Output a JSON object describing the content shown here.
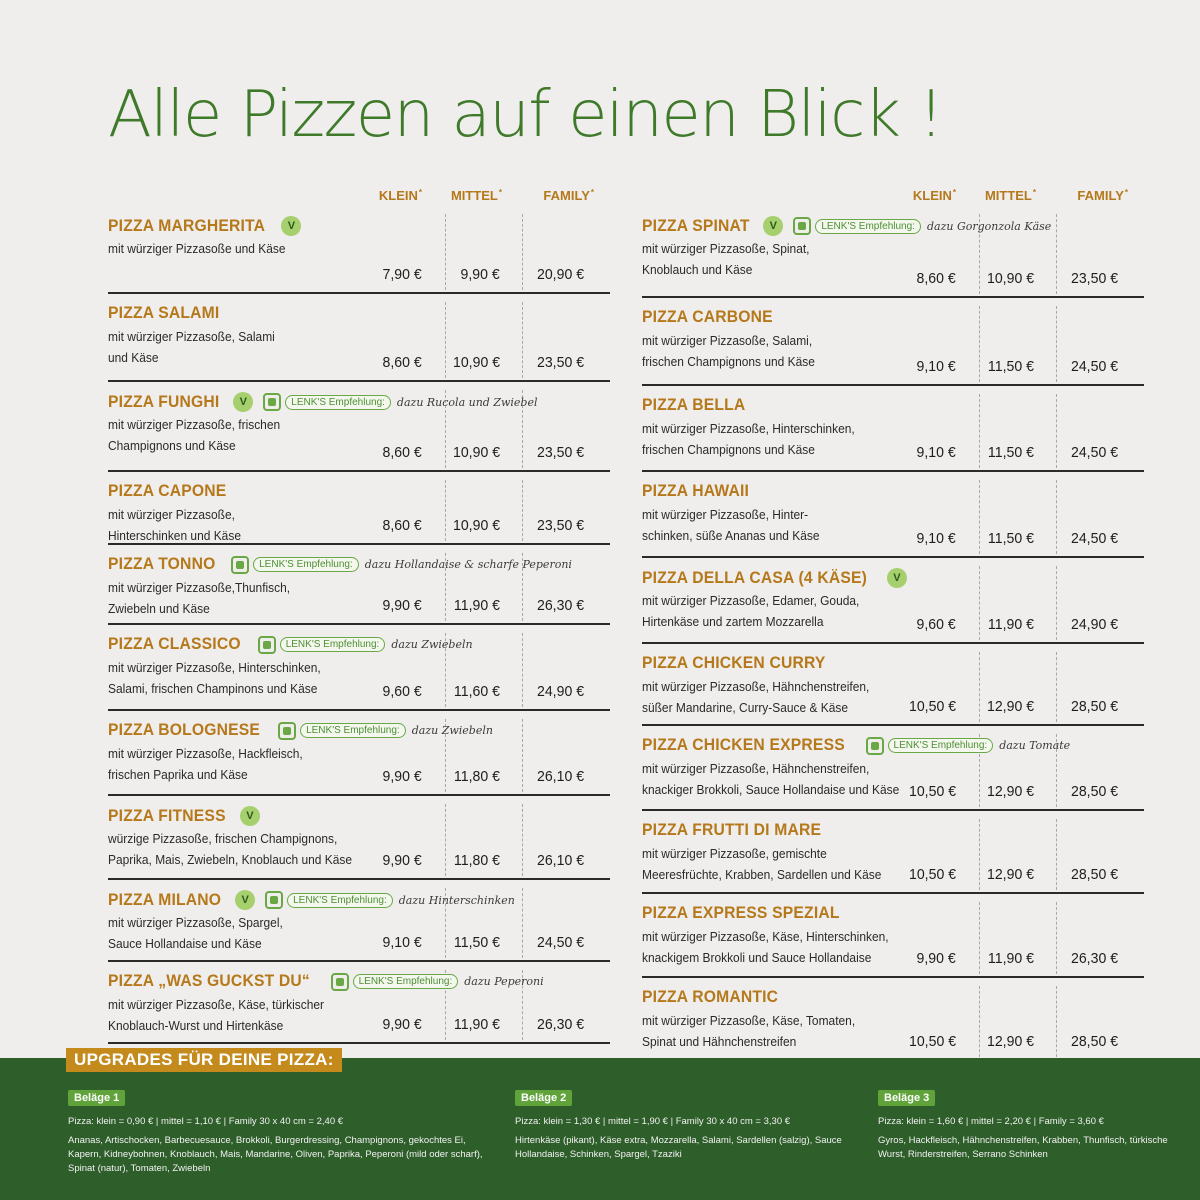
{
  "title": "Alle Pizzen auf einen Blick !",
  "header": {
    "klein": "KLEIN",
    "mittel": "MITTEL",
    "family": "FAMILY"
  },
  "left": [
    {
      "name": "PIZZA MARGHERITA",
      "veg": "V",
      "rec": "",
      "desc": [
        "mit würziger Pizzasoße und Käse"
      ],
      "klein": "7,90 €",
      "mittel": "9,90 €",
      "family": "20,90 €"
    },
    {
      "name": "PIZZA SALAMI",
      "veg": "",
      "rec": "",
      "desc": [
        "mit würziger Pizzasoße, Salami",
        "und Käse"
      ],
      "klein": "8,60 €",
      "mittel": "10,90 €",
      "family": "23,50 €"
    },
    {
      "name": "PIZZA FUNGHI",
      "veg": "V",
      "rec": "dazu Rucola und Zwiebel",
      "desc": [
        "mit würziger Pizzasoße, frischen",
        "Champignons und Käse"
      ],
      "klein": "8,60 €",
      "mittel": "10,90 €",
      "family": "23,50 €"
    },
    {
      "name": "PIZZA CAPONE",
      "veg": "",
      "rec": "",
      "desc": [
        "mit würziger Pizzasoße,",
        "Hinterschinken und Käse"
      ],
      "klein": "8,60 €",
      "mittel": "10,90 €",
      "family": "23,50 €"
    },
    {
      "name": "PIZZA TONNO",
      "veg": "",
      "rec": "dazu Hollandaise & scharfe Peperoni",
      "desc": [
        "mit würziger Pizzasoße,Thunfisch,",
        "Zwiebeln und Käse"
      ],
      "klein": "9,90 €",
      "mittel": "11,90 €",
      "family": "26,30 €"
    },
    {
      "name": "PIZZA CLASSICO",
      "veg": "",
      "rec": "dazu Zwiebeln",
      "desc": [
        "mit würziger Pizzasoße, Hinterschinken,",
        "Salami, frischen Champinons und Käse"
      ],
      "klein": "9,60 €",
      "mittel": "11,60 €",
      "family": "24,90 €"
    },
    {
      "name": "PIZZA BOLOGNESE",
      "veg": "",
      "rec": "dazu Zwiebeln",
      "desc": [
        "mit würziger Pizzasoße, Hackfleisch,",
        "frischen Paprika und Käse"
      ],
      "klein": "9,90 €",
      "mittel": "11,80 €",
      "family": "26,10 €"
    },
    {
      "name": "PIZZA FITNESS",
      "veg": "V",
      "rec": "",
      "desc": [
        "würzige Pizzasoße, frischen Champignons,",
        "Paprika, Mais, Zwiebeln, Knoblauch und Käse"
      ],
      "klein": "9,90 €",
      "mittel": "11,80 €",
      "family": "26,10 €"
    },
    {
      "name": "PIZZA MILANO",
      "veg": "V",
      "rec": "dazu Hinterschinken",
      "desc": [
        "mit würziger Pizzasoße, Spargel,",
        "Sauce Hollandaise und Käse"
      ],
      "klein": "9,10 €",
      "mittel": "11,50 €",
      "family": "24,50 €"
    },
    {
      "name": "PIZZA „WAS GUCKST DU“",
      "veg": "",
      "rec": "dazu Peperoni",
      "desc": [
        "mit würziger Pizzasoße, Käse, türkischer",
        "Knoblauch-Wurst und Hirtenkäse"
      ],
      "klein": "9,90 €",
      "mittel": "11,90 €",
      "family": "26,30 €"
    }
  ],
  "right": [
    {
      "name": "PIZZA SPINAT",
      "veg": "V",
      "rec": "dazu Gorgonzola Käse",
      "desc": [
        "mit würziger Pizzasoße, Spinat,",
        "Knoblauch und Käse"
      ],
      "klein": "8,60 €",
      "mittel": "10,90 €",
      "family": "23,50 €"
    },
    {
      "name": "PIZZA CARBONE",
      "veg": "",
      "rec": "",
      "desc": [
        "mit würziger Pizzasoße, Salami,",
        "frischen Champignons und Käse"
      ],
      "klein": "9,10 €",
      "mittel": "11,50 €",
      "family": "24,50 €"
    },
    {
      "name": "PIZZA BELLA",
      "veg": "",
      "rec": "",
      "desc": [
        "mit würziger Pizzasoße, Hinterschinken,",
        "frischen Champignons und Käse"
      ],
      "klein": "9,10 €",
      "mittel": "11,50 €",
      "family": "24,50 €"
    },
    {
      "name": "PIZZA HAWAII",
      "veg": "",
      "rec": "",
      "desc": [
        "mit würziger Pizzasoße, Hinter-",
        "schinken, süße Ananas und Käse"
      ],
      "klein": "9,10 €",
      "mittel": "11,50 €",
      "family": "24,50 €"
    },
    {
      "name": "PIZZA DELLA CASA (4 KÄSE)",
      "veg": "V",
      "rec": "",
      "desc": [
        "mit würziger Pizzasoße, Edamer, Gouda,",
        "Hirtenkäse und zartem Mozzarella"
      ],
      "klein": "9,60 €",
      "mittel": "11,90 €",
      "family": "24,90 €"
    },
    {
      "name": "PIZZA CHICKEN CURRY",
      "veg": "",
      "rec": "",
      "desc": [
        "mit würziger Pizzasoße, Hähnchenstreifen,",
        "süßer Mandarine, Curry-Sauce & Käse"
      ],
      "klein": "10,50 €",
      "mittel": "12,90 €",
      "family": "28,50 €"
    },
    {
      "name": "PIZZA CHICKEN EXPRESS",
      "veg": "",
      "rec": "dazu Tomate",
      "desc": [
        "mit würziger Pizzasoße, Hähnchenstreifen,",
        "knackiger Brokkoli, Sauce Hollandaise und Käse"
      ],
      "klein": "10,50 €",
      "mittel": "12,90 €",
      "family": "28,50 €"
    },
    {
      "name": "PIZZA FRUTTI DI MARE",
      "veg": "",
      "rec": "",
      "desc": [
        "mit würziger Pizzasoße, gemischte",
        "Meeresfrüchte, Krabben, Sardellen und Käse"
      ],
      "klein": "10,50 €",
      "mittel": "12,90 €",
      "family": "28,50 €"
    },
    {
      "name": "PIZZA EXPRESS SPEZIAL",
      "veg": "",
      "rec": "",
      "desc": [
        "mit würziger Pizzasoße, Käse, Hinterschinken,",
        "knackigem Brokkoli und Sauce Hollandaise"
      ],
      "klein": "9,90 €",
      "mittel": "11,90 €",
      "family": "26,30 €"
    },
    {
      "name": "PIZZA ROMANTIC",
      "veg": "",
      "rec": "",
      "desc": [
        "mit würziger Pizzasoße, Käse, Tomaten,",
        "Spinat und Hähnchenstreifen"
      ],
      "klein": "10,50 €",
      "mittel": "12,90 €",
      "family": "28,50 €"
    }
  ],
  "rec_label": "LENK'S Empfehlung:",
  "upgrades": {
    "title": "UPGRADES FÜR DEINE PIZZA:",
    "groups": [
      {
        "label": "Beläge 1",
        "price": "Pizza: klein = 0,90 € | mittel = 1,10 € | Family 30 x 40 cm = 2,40 €",
        "items": "Ananas, Artischocken, Barbecuesauce, Brokkoli, Burgerdressing, Champignons, gekochtes Ei, Kapern, Kidneybohnen, Knoblauch, Mais, Mandarine, Oliven, Paprika, Peperoni (mild oder scharf), Spinat (natur), Tomaten, Zwiebeln"
      },
      {
        "label": "Beläge 2",
        "price": "Pizza: klein = 1,30 € | mittel = 1,90 € | Family 30 x 40 cm = 3,30 €",
        "items": "Hirtenkäse (pikant), Käse extra, Mozzarella, Salami, Sardellen (salzig), Sauce Hollandaise, Schinken, Spargel, Tzaziki"
      },
      {
        "label": "Beläge 3",
        "price": "Pizza: klein = 1,60 € | mittel = 2,20 € | Family = 3,60 €",
        "items": "Gyros, Hackfleisch, Hähnchenstreifen, Krabben, Thunfisch, türkische Wurst, Rinderstreifen, Serrano Schinken"
      }
    ]
  },
  "colors": {
    "title": "#3f7a2a",
    "name": "#b5781a",
    "footer": "#2e5e2a",
    "badge": "#c48a1c"
  }
}
